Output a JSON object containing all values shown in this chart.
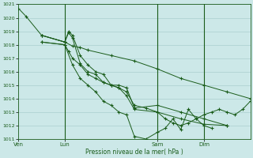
{
  "xlabel": "Pression niveau de la mer( hPa )",
  "ylim": [
    1011,
    1021
  ],
  "yticks": [
    1011,
    1012,
    1013,
    1014,
    1015,
    1016,
    1017,
    1018,
    1019,
    1020,
    1021
  ],
  "xtick_labels": [
    "Ven",
    "Lun",
    "Sam",
    "Dim"
  ],
  "xtick_positions": [
    0,
    12,
    36,
    48
  ],
  "xlim": [
    0,
    60
  ],
  "background_color": "#cce8e8",
  "grid_color": "#aacfcf",
  "line_color": "#1a5c1a",
  "marker": "+",
  "lines": [
    {
      "x": [
        0,
        2,
        6,
        12,
        14,
        16,
        18,
        24,
        30,
        36,
        42,
        48,
        54,
        60
      ],
      "y": [
        1020.7,
        1020.1,
        1018.7,
        1018.2,
        1017.9,
        1017.8,
        1017.6,
        1017.2,
        1016.8,
        1016.2,
        1015.5,
        1015.0,
        1014.5,
        1014.0
      ]
    },
    {
      "x": [
        6,
        12,
        13,
        14,
        16,
        18,
        20,
        22,
        24,
        26,
        28,
        30,
        36,
        42,
        48,
        54
      ],
      "y": [
        1018.7,
        1018.2,
        1019.0,
        1018.7,
        1017.2,
        1016.5,
        1016.0,
        1015.8,
        1015.0,
        1015.0,
        1014.8,
        1013.3,
        1013.5,
        1013.0,
        1012.5,
        1012.0
      ]
    },
    {
      "x": [
        6,
        12,
        13,
        14,
        16,
        18,
        20,
        22,
        24,
        26,
        28,
        30,
        36,
        42,
        48,
        54
      ],
      "y": [
        1018.7,
        1018.2,
        1018.9,
        1018.5,
        1016.6,
        1016.0,
        1015.8,
        1015.2,
        1015.0,
        1014.8,
        1014.2,
        1013.2,
        1013.0,
        1012.5,
        1012.1,
        1012.0
      ]
    },
    {
      "x": [
        6,
        12,
        13,
        14,
        16,
        18,
        20,
        22,
        24,
        26,
        28,
        30,
        33,
        36,
        38,
        40,
        42,
        44,
        46,
        48,
        50,
        52,
        54,
        56,
        58,
        60
      ],
      "y": [
        1018.2,
        1018.0,
        1017.5,
        1017.0,
        1016.5,
        1015.8,
        1015.5,
        1015.2,
        1015.0,
        1014.8,
        1014.5,
        1013.5,
        1013.3,
        1013.0,
        1012.5,
        1012.2,
        1012.0,
        1012.2,
        1012.5,
        1012.8,
        1013.0,
        1013.2,
        1013.0,
        1012.8,
        1013.2,
        1013.8
      ]
    },
    {
      "x": [
        6,
        12,
        14,
        16,
        18,
        20,
        22,
        24,
        26,
        28,
        30,
        33,
        36,
        38,
        40,
        42,
        44,
        46,
        48,
        50
      ],
      "y": [
        1018.2,
        1018.0,
        1016.5,
        1015.5,
        1015.0,
        1014.5,
        1013.8,
        1013.5,
        1013.0,
        1012.8,
        1011.2,
        1011.0,
        1011.5,
        1011.8,
        1012.5,
        1011.7,
        1013.2,
        1012.5,
        1012.0,
        1011.8
      ]
    }
  ],
  "vline_positions": [
    12,
    36,
    48
  ],
  "vline_color": "#1a5c1a"
}
